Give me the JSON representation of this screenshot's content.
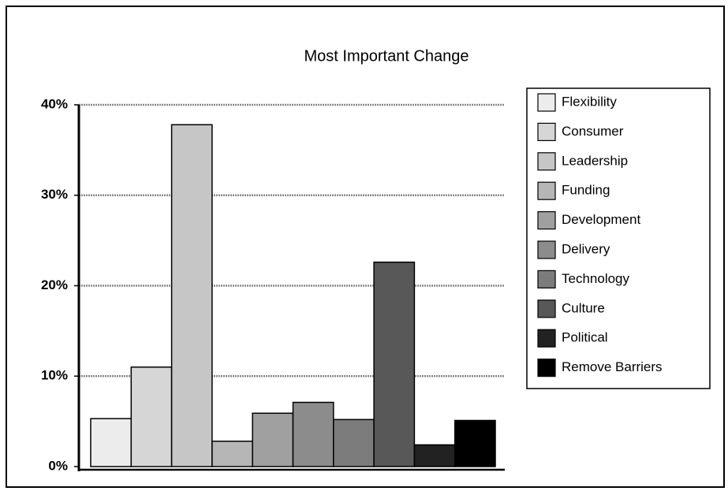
{
  "chart_data": {
    "type": "bar",
    "title": "Most Important Change",
    "series": [
      {
        "name": "Flexibility",
        "color": "#ececec",
        "values": [
          5.3
        ]
      },
      {
        "name": "Consumer",
        "color": "#d6d6d6",
        "values": [
          11.0
        ]
      },
      {
        "name": "Leadership",
        "color": "#c6c6c6",
        "values": [
          37.8
        ]
      },
      {
        "name": "Funding",
        "color": "#b6b6b6",
        "values": [
          2.8
        ]
      },
      {
        "name": "Development",
        "color": "#a0a0a0",
        "values": [
          5.9
        ]
      },
      {
        "name": "Delivery",
        "color": "#8c8c8c",
        "values": [
          7.1
        ]
      },
      {
        "name": "Technology",
        "color": "#7c7c7c",
        "values": [
          5.2
        ]
      },
      {
        "name": "Culture",
        "color": "#585858",
        "values": [
          22.6
        ]
      },
      {
        "name": "Political",
        "color": "#222222",
        "values": [
          2.4
        ]
      },
      {
        "name": "Remove Barriers",
        "color": "#000000",
        "values": [
          5.1
        ]
      }
    ],
    "ylim": [
      0,
      40
    ],
    "yticks": [
      {
        "value": 0,
        "label": "0%"
      },
      {
        "value": 10,
        "label": "10%"
      },
      {
        "value": 20,
        "label": "20%"
      },
      {
        "value": 30,
        "label": "30%"
      },
      {
        "value": 40,
        "label": "40%"
      }
    ],
    "grid": true,
    "legend": "right"
  }
}
